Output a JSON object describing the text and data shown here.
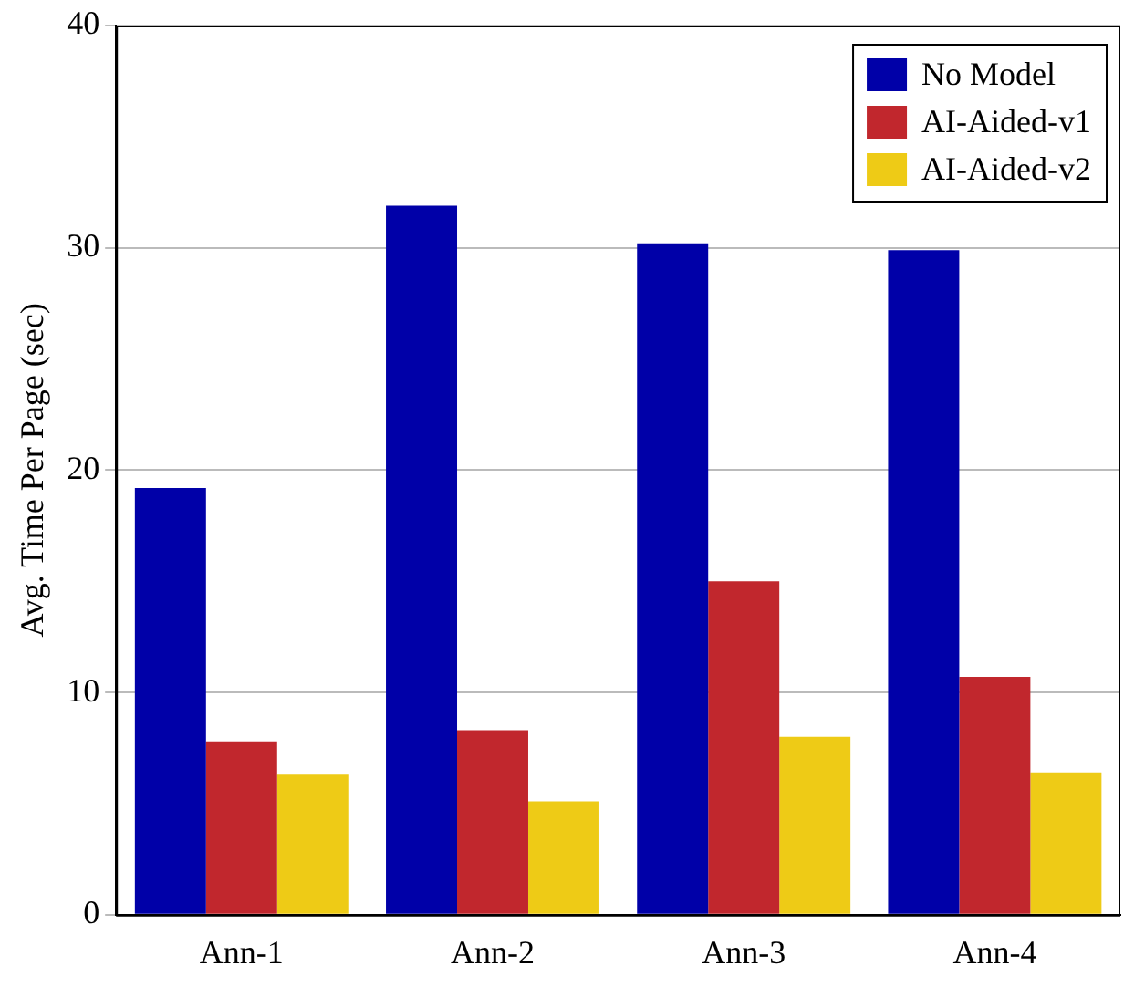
{
  "chart_data": {
    "type": "bar",
    "ylabel": "Avg. Time Per Page (sec)",
    "categories": [
      "Ann-1",
      "Ann-2",
      "Ann-3",
      "Ann-4"
    ],
    "series": [
      {
        "name": "No Model",
        "color": "#0000a8",
        "values": [
          19.2,
          31.9,
          30.2,
          29.9
        ]
      },
      {
        "name": "AI-Aided-v1",
        "color": "#c1272d",
        "values": [
          7.8,
          8.3,
          15.0,
          10.7
        ]
      },
      {
        "name": "AI-Aided-v2",
        "color": "#eecb16",
        "values": [
          6.3,
          5.1,
          8.0,
          6.4
        ]
      }
    ],
    "ylim": [
      0,
      40
    ],
    "yticks": [
      0,
      10,
      20,
      30,
      40
    ],
    "grid": "y",
    "legend": "top right"
  }
}
